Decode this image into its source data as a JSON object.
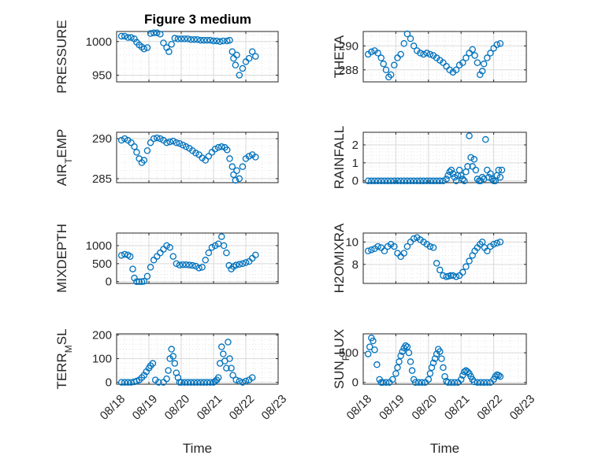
{
  "figure": {
    "title": "Figure 3 medium"
  },
  "colors": {
    "marker": "#0072bd",
    "axis": "#262626",
    "grid": "#d9d9d9"
  },
  "chart_data": [
    {
      "type": "scatter",
      "ylabel": "PRESSURE",
      "xlim": [
        0,
        5
      ],
      "ylim": [
        940,
        1015
      ],
      "yticks": [
        950,
        1000
      ],
      "xticklabels": [],
      "xlabel": "",
      "grid": true,
      "x": [
        0.15,
        0.25,
        0.35,
        0.45,
        0.55,
        0.62,
        0.7,
        0.78,
        0.85,
        0.95,
        1.05,
        1.15,
        1.25,
        1.35,
        1.45,
        1.55,
        1.62,
        1.7,
        1.8,
        1.9,
        2.0,
        2.1,
        2.2,
        2.3,
        2.4,
        2.5,
        2.6,
        2.7,
        2.8,
        2.9,
        3.0,
        3.1,
        3.2,
        3.3,
        3.42,
        3.5,
        3.58,
        3.62,
        3.68,
        3.72,
        3.8,
        3.9,
        4.0,
        4.1,
        4.2,
        4.3
      ],
      "y": [
        1008,
        1008,
        1006,
        1006,
        1004,
        999,
        995,
        992,
        989,
        991,
        1012,
        1013,
        1013,
        1011,
        998,
        991,
        985,
        996,
        1005,
        1004,
        1004,
        1004,
        1004,
        1003,
        1003,
        1003,
        1002,
        1002,
        1002,
        1002,
        1001,
        1001,
        1000,
        1001,
        1001,
        1002,
        985,
        975,
        965,
        980,
        950,
        960,
        970,
        975,
        985,
        978
      ]
    },
    {
      "type": "scatter",
      "ylabel": "THETA",
      "xlim": [
        0,
        5
      ],
      "ylim": [
        287,
        291.2
      ],
      "yticks": [
        288,
        290
      ],
      "xticklabels": [],
      "xlabel": "",
      "grid": true,
      "x": [
        0.15,
        0.25,
        0.35,
        0.45,
        0.55,
        0.62,
        0.7,
        0.78,
        0.85,
        0.95,
        1.05,
        1.15,
        1.25,
        1.35,
        1.45,
        1.55,
        1.65,
        1.75,
        1.85,
        1.95,
        2.05,
        2.15,
        2.25,
        2.35,
        2.45,
        2.55,
        2.65,
        2.75,
        2.85,
        2.95,
        3.05,
        3.15,
        3.25,
        3.35,
        3.42,
        3.5,
        3.58,
        3.65,
        3.7,
        3.8,
        3.9,
        4.0,
        4.1,
        4.2
      ],
      "y": [
        289.3,
        289.5,
        289.6,
        289.4,
        289.0,
        288.5,
        288.0,
        287.4,
        287.6,
        288.4,
        289.0,
        289.3,
        290.2,
        291.0,
        290.6,
        290.0,
        289.6,
        289.4,
        289.3,
        289.4,
        289.3,
        289.2,
        289.0,
        288.8,
        288.6,
        288.3,
        288.0,
        287.8,
        288.0,
        288.4,
        288.6,
        289.0,
        289.4,
        289.7,
        289.2,
        288.6,
        287.6,
        287.9,
        288.5,
        289.0,
        289.4,
        289.8,
        290.1,
        290.2
      ]
    },
    {
      "type": "scatter",
      "ylabel": "AIR_TEMP",
      "xlim": [
        0,
        5
      ],
      "ylim": [
        284.5,
        290.8
      ],
      "yticks": [
        285,
        290
      ],
      "xticklabels": [],
      "xlabel": "",
      "grid": true,
      "x": [
        0.15,
        0.25,
        0.35,
        0.45,
        0.55,
        0.62,
        0.7,
        0.78,
        0.85,
        0.95,
        1.05,
        1.15,
        1.25,
        1.35,
        1.45,
        1.55,
        1.65,
        1.75,
        1.85,
        1.95,
        2.05,
        2.15,
        2.25,
        2.35,
        2.45,
        2.55,
        2.65,
        2.75,
        2.85,
        2.95,
        3.05,
        3.15,
        3.25,
        3.35,
        3.42,
        3.5,
        3.58,
        3.62,
        3.68,
        3.72,
        3.8,
        3.9,
        4.0,
        4.1,
        4.2,
        4.3
      ],
      "y": [
        289.8,
        290.0,
        289.8,
        289.5,
        289.0,
        288.3,
        287.5,
        287.0,
        287.3,
        288.5,
        289.5,
        290.0,
        290.1,
        290.0,
        289.8,
        289.5,
        289.6,
        289.7,
        289.5,
        289.4,
        289.2,
        289.0,
        288.8,
        288.5,
        288.2,
        288.0,
        287.6,
        287.3,
        287.8,
        288.3,
        288.7,
        288.9,
        289.0,
        288.9,
        288.6,
        287.5,
        286.5,
        285.5,
        284.8,
        286.0,
        285.0,
        286.5,
        287.5,
        287.8,
        288.0,
        287.7
      ]
    },
    {
      "type": "scatter",
      "ylabel": "RAINFALL",
      "xlim": [
        0,
        5
      ],
      "ylim": [
        -0.1,
        2.7
      ],
      "yticks": [
        0,
        1,
        2
      ],
      "xticklabels": [],
      "xlabel": "",
      "grid": true,
      "x": [
        0.15,
        0.25,
        0.35,
        0.45,
        0.55,
        0.65,
        0.75,
        0.85,
        0.95,
        1.05,
        1.15,
        1.25,
        1.35,
        1.45,
        1.55,
        1.65,
        1.75,
        1.85,
        1.95,
        2.05,
        2.15,
        2.25,
        2.35,
        2.45,
        2.55,
        2.6,
        2.65,
        2.7,
        2.75,
        2.8,
        2.85,
        2.9,
        2.95,
        3.0,
        3.05,
        3.1,
        3.15,
        3.2,
        3.25,
        3.3,
        3.35,
        3.4,
        3.45,
        3.5,
        3.55,
        3.6,
        3.65,
        3.7,
        3.75,
        3.8,
        3.85,
        3.9,
        3.95,
        4.0,
        4.05,
        4.1,
        4.15,
        4.2,
        4.25
      ],
      "y": [
        0,
        0,
        0,
        0,
        0,
        0,
        0,
        0,
        0,
        0,
        0,
        0,
        0,
        0,
        0,
        0,
        0,
        0,
        0,
        0,
        0,
        0,
        0,
        0,
        0.1,
        0.3,
        0.5,
        0.6,
        0.4,
        0.2,
        0,
        0.3,
        0.6,
        0.3,
        0.1,
        0,
        0.5,
        0.8,
        2.5,
        1.3,
        0.8,
        1.2,
        0.6,
        0.1,
        0,
        0,
        0.2,
        0.1,
        2.3,
        0.6,
        0.2,
        0.4,
        0.1,
        0,
        0,
        0.3,
        0.6,
        0.2,
        0.6
      ]
    },
    {
      "type": "scatter",
      "ylabel": "MIXDEPTH",
      "xlim": [
        0,
        5
      ],
      "ylim": [
        -50,
        1350
      ],
      "yticks": [
        0,
        500,
        1000
      ],
      "xticklabels": [],
      "xlabel": "",
      "grid": true,
      "x": [
        0.15,
        0.25,
        0.35,
        0.42,
        0.5,
        0.55,
        0.62,
        0.7,
        0.78,
        0.85,
        0.95,
        1.05,
        1.15,
        1.25,
        1.35,
        1.45,
        1.55,
        1.65,
        1.75,
        1.85,
        1.95,
        2.05,
        2.15,
        2.25,
        2.35,
        2.45,
        2.55,
        2.65,
        2.75,
        2.85,
        2.95,
        3.05,
        3.15,
        3.25,
        3.32,
        3.4,
        3.48,
        3.55,
        3.62,
        3.7,
        3.8,
        3.9,
        4.0,
        4.1,
        4.2,
        4.3
      ],
      "y": [
        730,
        760,
        740,
        700,
        350,
        100,
        0,
        0,
        0,
        10,
        150,
        400,
        600,
        700,
        800,
        900,
        1000,
        950,
        700,
        500,
        460,
        470,
        470,
        460,
        450,
        430,
        380,
        400,
        600,
        800,
        950,
        1000,
        1050,
        1250,
        1000,
        800,
        450,
        350,
        420,
        460,
        480,
        500,
        530,
        560,
        650,
        740
      ]
    },
    {
      "type": "scatter",
      "ylabel": "H2OMIXRA",
      "xlim": [
        0,
        5
      ],
      "ylim": [
        6.3,
        10.8
      ],
      "yticks": [
        8,
        10
      ],
      "xticklabels": [],
      "xlabel": "",
      "grid": true,
      "x": [
        0.15,
        0.25,
        0.35,
        0.45,
        0.55,
        0.65,
        0.75,
        0.85,
        0.95,
        1.05,
        1.15,
        1.25,
        1.35,
        1.45,
        1.55,
        1.65,
        1.75,
        1.85,
        1.95,
        2.05,
        2.15,
        2.25,
        2.35,
        2.45,
        2.55,
        2.62,
        2.68,
        2.75,
        2.85,
        2.95,
        3.05,
        3.15,
        3.25,
        3.35,
        3.42,
        3.5,
        3.58,
        3.65,
        3.72,
        3.8,
        3.9,
        4.0,
        4.1,
        4.2
      ],
      "y": [
        9.2,
        9.3,
        9.4,
        9.6,
        9.5,
        9.2,
        9.6,
        9.8,
        9.6,
        9.0,
        8.7,
        9.0,
        9.6,
        10.0,
        10.3,
        10.4,
        10.2,
        10.0,
        9.8,
        9.6,
        9.5,
        8.1,
        7.5,
        7.0,
        6.9,
        6.95,
        7.0,
        7.0,
        6.9,
        7.0,
        7.3,
        7.8,
        8.3,
        8.8,
        9.2,
        9.5,
        9.8,
        10.0,
        9.5,
        9.2,
        9.6,
        9.8,
        9.9,
        10.0
      ]
    },
    {
      "type": "scatter",
      "ylabel": "TERR_MSL",
      "xlim": [
        0,
        5
      ],
      "ylim": [
        -8,
        205
      ],
      "yticks": [
        0,
        100,
        200
      ],
      "xticklabels": [
        "08/18",
        "08/19",
        "08/20",
        "08/21",
        "08/22",
        "08/23"
      ],
      "xlabel": "Time",
      "grid": true,
      "x": [
        0.15,
        0.25,
        0.35,
        0.45,
        0.55,
        0.62,
        0.7,
        0.78,
        0.85,
        0.92,
        1.0,
        1.05,
        1.12,
        1.2,
        1.3,
        1.45,
        1.55,
        1.6,
        1.65,
        1.7,
        1.75,
        1.8,
        1.85,
        1.9,
        1.95,
        2.0,
        2.1,
        2.2,
        2.3,
        2.4,
        2.5,
        2.6,
        2.7,
        2.8,
        2.9,
        3.0,
        3.05,
        3.1,
        3.15,
        3.2,
        3.25,
        3.3,
        3.35,
        3.4,
        3.45,
        3.5,
        3.55,
        3.6,
        3.7,
        3.8,
        3.9,
        4.0,
        4.1,
        4.2
      ],
      "y": [
        0,
        0,
        0,
        0,
        2,
        5,
        10,
        20,
        30,
        45,
        60,
        70,
        80,
        10,
        0,
        0,
        15,
        50,
        100,
        140,
        110,
        80,
        40,
        20,
        0,
        0,
        0,
        0,
        0,
        0,
        0,
        0,
        0,
        0,
        0,
        0,
        5,
        10,
        20,
        80,
        150,
        120,
        90,
        60,
        170,
        100,
        60,
        30,
        10,
        5,
        0,
        5,
        10,
        20
      ]
    },
    {
      "type": "scatter",
      "ylabel": "SUN_FLUX",
      "xlim": [
        0,
        5
      ],
      "ylim": [
        -30,
        820
      ],
      "yticks": [
        0,
        500
      ],
      "xticklabels": [
        "08/18",
        "08/19",
        "08/20",
        "08/21",
        "08/22",
        "08/23"
      ],
      "xlabel": "Time",
      "grid": true,
      "x": [
        0.15,
        0.2,
        0.25,
        0.3,
        0.35,
        0.42,
        0.5,
        0.55,
        0.6,
        0.7,
        0.8,
        0.9,
        1.0,
        1.05,
        1.1,
        1.15,
        1.2,
        1.25,
        1.3,
        1.35,
        1.4,
        1.45,
        1.5,
        1.55,
        1.6,
        1.7,
        1.8,
        1.9,
        2.0,
        2.05,
        2.1,
        2.15,
        2.2,
        2.25,
        2.3,
        2.35,
        2.4,
        2.45,
        2.5,
        2.55,
        2.6,
        2.7,
        2.8,
        2.9,
        3.0,
        3.05,
        3.1,
        3.15,
        3.2,
        3.25,
        3.3,
        3.35,
        3.4,
        3.5,
        3.6,
        3.7,
        3.8,
        3.9,
        4.0,
        4.05,
        4.1,
        4.15,
        4.2
      ],
      "y": [
        480,
        600,
        750,
        700,
        550,
        300,
        50,
        0,
        0,
        0,
        0,
        50,
        150,
        250,
        350,
        450,
        520,
        580,
        620,
        600,
        500,
        350,
        200,
        50,
        0,
        0,
        0,
        0,
        50,
        150,
        250,
        330,
        400,
        480,
        560,
        520,
        400,
        250,
        100,
        20,
        0,
        0,
        0,
        0,
        50,
        120,
        180,
        200,
        180,
        150,
        100,
        50,
        10,
        0,
        0,
        0,
        0,
        0,
        50,
        100,
        130,
        120,
        100
      ]
    }
  ]
}
